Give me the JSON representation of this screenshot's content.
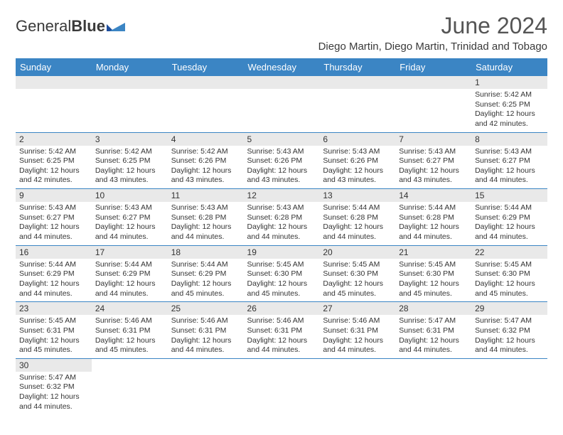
{
  "logo": {
    "text1": "General",
    "text2": "Blue"
  },
  "colors": {
    "header_bg": "#3b85c4",
    "header_text": "#ffffff",
    "daynum_bg": "#e9e9e9",
    "border": "#3b85c4",
    "body_text": "#333333",
    "title_text": "#555555"
  },
  "title": "June 2024",
  "location": "Diego Martin, Diego Martin, Trinidad and Tobago",
  "day_headers": [
    "Sunday",
    "Monday",
    "Tuesday",
    "Wednesday",
    "Thursday",
    "Friday",
    "Saturday"
  ],
  "weeks": [
    [
      null,
      null,
      null,
      null,
      null,
      null,
      {
        "n": "1",
        "sr": "5:42 AM",
        "ss": "6:25 PM",
        "dl": "12 hours and 42 minutes."
      }
    ],
    [
      {
        "n": "2",
        "sr": "5:42 AM",
        "ss": "6:25 PM",
        "dl": "12 hours and 42 minutes."
      },
      {
        "n": "3",
        "sr": "5:42 AM",
        "ss": "6:25 PM",
        "dl": "12 hours and 43 minutes."
      },
      {
        "n": "4",
        "sr": "5:42 AM",
        "ss": "6:26 PM",
        "dl": "12 hours and 43 minutes."
      },
      {
        "n": "5",
        "sr": "5:43 AM",
        "ss": "6:26 PM",
        "dl": "12 hours and 43 minutes."
      },
      {
        "n": "6",
        "sr": "5:43 AM",
        "ss": "6:26 PM",
        "dl": "12 hours and 43 minutes."
      },
      {
        "n": "7",
        "sr": "5:43 AM",
        "ss": "6:27 PM",
        "dl": "12 hours and 43 minutes."
      },
      {
        "n": "8",
        "sr": "5:43 AM",
        "ss": "6:27 PM",
        "dl": "12 hours and 44 minutes."
      }
    ],
    [
      {
        "n": "9",
        "sr": "5:43 AM",
        "ss": "6:27 PM",
        "dl": "12 hours and 44 minutes."
      },
      {
        "n": "10",
        "sr": "5:43 AM",
        "ss": "6:27 PM",
        "dl": "12 hours and 44 minutes."
      },
      {
        "n": "11",
        "sr": "5:43 AM",
        "ss": "6:28 PM",
        "dl": "12 hours and 44 minutes."
      },
      {
        "n": "12",
        "sr": "5:43 AM",
        "ss": "6:28 PM",
        "dl": "12 hours and 44 minutes."
      },
      {
        "n": "13",
        "sr": "5:44 AM",
        "ss": "6:28 PM",
        "dl": "12 hours and 44 minutes."
      },
      {
        "n": "14",
        "sr": "5:44 AM",
        "ss": "6:28 PM",
        "dl": "12 hours and 44 minutes."
      },
      {
        "n": "15",
        "sr": "5:44 AM",
        "ss": "6:29 PM",
        "dl": "12 hours and 44 minutes."
      }
    ],
    [
      {
        "n": "16",
        "sr": "5:44 AM",
        "ss": "6:29 PM",
        "dl": "12 hours and 44 minutes."
      },
      {
        "n": "17",
        "sr": "5:44 AM",
        "ss": "6:29 PM",
        "dl": "12 hours and 44 minutes."
      },
      {
        "n": "18",
        "sr": "5:44 AM",
        "ss": "6:29 PM",
        "dl": "12 hours and 45 minutes."
      },
      {
        "n": "19",
        "sr": "5:45 AM",
        "ss": "6:30 PM",
        "dl": "12 hours and 45 minutes."
      },
      {
        "n": "20",
        "sr": "5:45 AM",
        "ss": "6:30 PM",
        "dl": "12 hours and 45 minutes."
      },
      {
        "n": "21",
        "sr": "5:45 AM",
        "ss": "6:30 PM",
        "dl": "12 hours and 45 minutes."
      },
      {
        "n": "22",
        "sr": "5:45 AM",
        "ss": "6:30 PM",
        "dl": "12 hours and 45 minutes."
      }
    ],
    [
      {
        "n": "23",
        "sr": "5:45 AM",
        "ss": "6:31 PM",
        "dl": "12 hours and 45 minutes."
      },
      {
        "n": "24",
        "sr": "5:46 AM",
        "ss": "6:31 PM",
        "dl": "12 hours and 45 minutes."
      },
      {
        "n": "25",
        "sr": "5:46 AM",
        "ss": "6:31 PM",
        "dl": "12 hours and 44 minutes."
      },
      {
        "n": "26",
        "sr": "5:46 AM",
        "ss": "6:31 PM",
        "dl": "12 hours and 44 minutes."
      },
      {
        "n": "27",
        "sr": "5:46 AM",
        "ss": "6:31 PM",
        "dl": "12 hours and 44 minutes."
      },
      {
        "n": "28",
        "sr": "5:47 AM",
        "ss": "6:31 PM",
        "dl": "12 hours and 44 minutes."
      },
      {
        "n": "29",
        "sr": "5:47 AM",
        "ss": "6:32 PM",
        "dl": "12 hours and 44 minutes."
      }
    ],
    [
      {
        "n": "30",
        "sr": "5:47 AM",
        "ss": "6:32 PM",
        "dl": "12 hours and 44 minutes."
      },
      null,
      null,
      null,
      null,
      null,
      null
    ]
  ],
  "labels": {
    "sunrise": "Sunrise:",
    "sunset": "Sunset:",
    "daylight": "Daylight:"
  }
}
